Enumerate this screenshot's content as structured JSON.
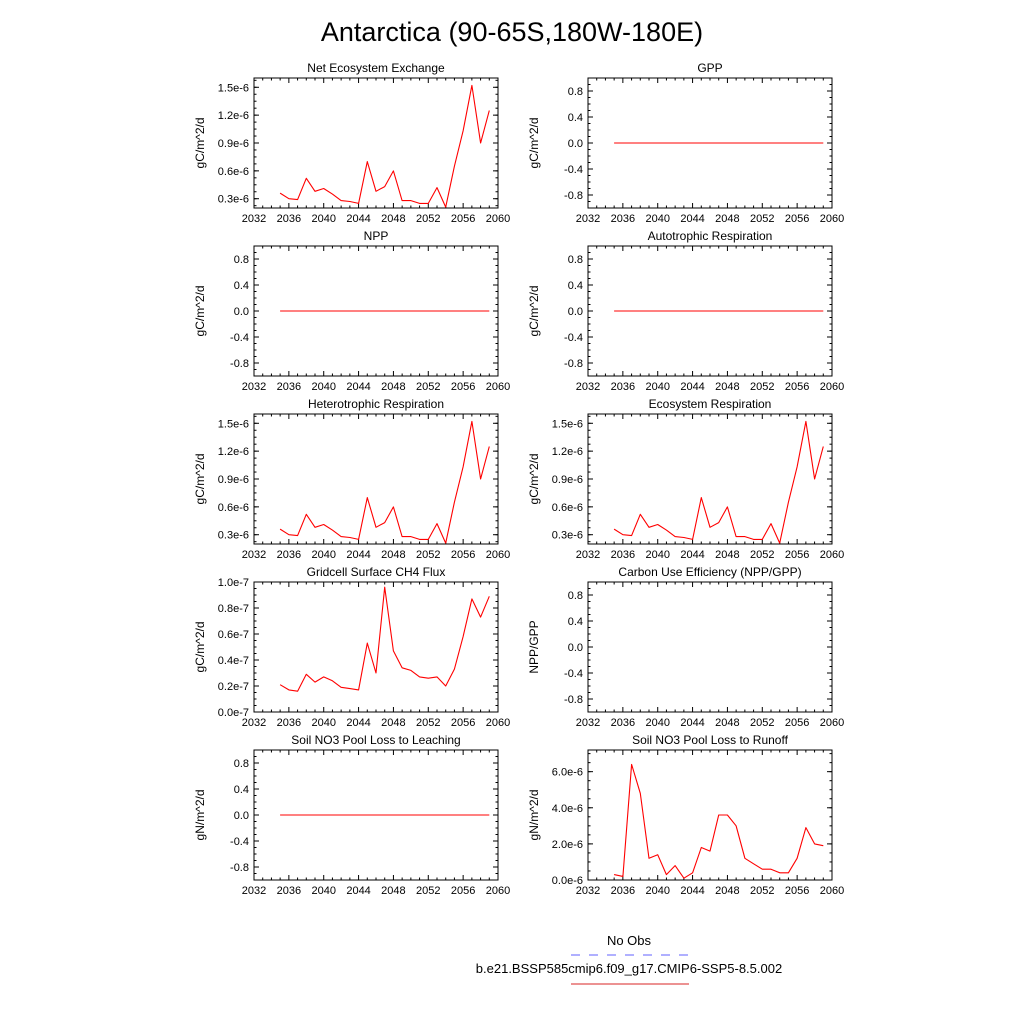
{
  "page": {
    "title": "Antarctica (90-65S,180W-180E)"
  },
  "legend": {
    "obs_label": "No Obs",
    "obs_color": "#8080ff",
    "model_label": "b.e21.BSSP585cmip6.f09_g17.CMIP6-SSP5-8.5.002",
    "model_color": "#e05050"
  },
  "line_color": "#ff0000",
  "chart_data": [
    {
      "type": "line",
      "title": "Net Ecosystem Exchange",
      "ylabel": "gC/m^2/d",
      "xlim": [
        2032,
        2060
      ],
      "ylim": [
        2e-07,
        1.6e-06
      ],
      "xticks": [
        "2032",
        "2036",
        "2040",
        "2044",
        "2048",
        "2052",
        "2056",
        "2060"
      ],
      "yticks": [
        {
          "v": 3e-07,
          "label": "0.3e-6"
        },
        {
          "v": 6e-07,
          "label": "0.6e-6"
        },
        {
          "v": 9e-07,
          "label": "0.9e-6"
        },
        {
          "v": 1.2e-06,
          "label": "1.2e-6"
        },
        {
          "v": 1.5e-06,
          "label": "1.5e-6"
        }
      ],
      "x": [
        2035,
        2036,
        2037,
        2038,
        2039,
        2040,
        2041,
        2042,
        2043,
        2044,
        2045,
        2046,
        2047,
        2048,
        2049,
        2050,
        2051,
        2052,
        2053,
        2054,
        2055,
        2056,
        2057,
        2058,
        2059
      ],
      "y": [
        3.6e-07,
        3e-07,
        2.9e-07,
        5.2e-07,
        3.8e-07,
        4.1e-07,
        3.5e-07,
        2.8e-07,
        2.7e-07,
        2.5e-07,
        7e-07,
        3.8e-07,
        4.3e-07,
        6e-07,
        2.8e-07,
        2.8e-07,
        2.5e-07,
        2.5e-07,
        4.2e-07,
        2.1e-07,
        6.5e-07,
        1.03e-06,
        1.52e-06,
        9e-07,
        1.25e-06
      ]
    },
    {
      "type": "line",
      "title": "GPP",
      "ylabel": "gC/m^2/d",
      "xlim": [
        2032,
        2060
      ],
      "ylim": [
        -1.0,
        1.0
      ],
      "xticks": [
        "2032",
        "2036",
        "2040",
        "2044",
        "2048",
        "2052",
        "2056",
        "2060"
      ],
      "yticks": [
        {
          "v": -0.8,
          "label": "-0.8"
        },
        {
          "v": -0.4,
          "label": "-0.4"
        },
        {
          "v": 0.0,
          "label": "0.0"
        },
        {
          "v": 0.4,
          "label": "0.4"
        },
        {
          "v": 0.8,
          "label": "0.8"
        }
      ],
      "x": [
        2035,
        2059
      ],
      "y": [
        0,
        0
      ]
    },
    {
      "type": "line",
      "title": "NPP",
      "ylabel": "gC/m^2/d",
      "xlim": [
        2032,
        2060
      ],
      "ylim": [
        -1.0,
        1.0
      ],
      "xticks": [
        "2032",
        "2036",
        "2040",
        "2044",
        "2048",
        "2052",
        "2056",
        "2060"
      ],
      "yticks": [
        {
          "v": -0.8,
          "label": "-0.8"
        },
        {
          "v": -0.4,
          "label": "-0.4"
        },
        {
          "v": 0.0,
          "label": "0.0"
        },
        {
          "v": 0.4,
          "label": "0.4"
        },
        {
          "v": 0.8,
          "label": "0.8"
        }
      ],
      "x": [
        2035,
        2059
      ],
      "y": [
        0,
        0
      ]
    },
    {
      "type": "line",
      "title": "Autotrophic Respiration",
      "ylabel": "gC/m^2/d",
      "xlim": [
        2032,
        2060
      ],
      "ylim": [
        -1.0,
        1.0
      ],
      "xticks": [
        "2032",
        "2036",
        "2040",
        "2044",
        "2048",
        "2052",
        "2056",
        "2060"
      ],
      "yticks": [
        {
          "v": -0.8,
          "label": "-0.8"
        },
        {
          "v": -0.4,
          "label": "-0.4"
        },
        {
          "v": 0.0,
          "label": "0.0"
        },
        {
          "v": 0.4,
          "label": "0.4"
        },
        {
          "v": 0.8,
          "label": "0.8"
        }
      ],
      "x": [
        2035,
        2059
      ],
      "y": [
        0,
        0
      ]
    },
    {
      "type": "line",
      "title": "Heterotrophic Respiration",
      "ylabel": "gC/m^2/d",
      "xlim": [
        2032,
        2060
      ],
      "ylim": [
        2e-07,
        1.6e-06
      ],
      "xticks": [
        "2032",
        "2036",
        "2040",
        "2044",
        "2048",
        "2052",
        "2056",
        "2060"
      ],
      "yticks": [
        {
          "v": 3e-07,
          "label": "0.3e-6"
        },
        {
          "v": 6e-07,
          "label": "0.6e-6"
        },
        {
          "v": 9e-07,
          "label": "0.9e-6"
        },
        {
          "v": 1.2e-06,
          "label": "1.2e-6"
        },
        {
          "v": 1.5e-06,
          "label": "1.5e-6"
        }
      ],
      "x": [
        2035,
        2036,
        2037,
        2038,
        2039,
        2040,
        2041,
        2042,
        2043,
        2044,
        2045,
        2046,
        2047,
        2048,
        2049,
        2050,
        2051,
        2052,
        2053,
        2054,
        2055,
        2056,
        2057,
        2058,
        2059
      ],
      "y": [
        3.6e-07,
        3e-07,
        2.9e-07,
        5.2e-07,
        3.8e-07,
        4.1e-07,
        3.5e-07,
        2.8e-07,
        2.7e-07,
        2.5e-07,
        7e-07,
        3.8e-07,
        4.3e-07,
        6e-07,
        2.8e-07,
        2.8e-07,
        2.5e-07,
        2.5e-07,
        4.2e-07,
        2.1e-07,
        6.5e-07,
        1.03e-06,
        1.52e-06,
        9e-07,
        1.25e-06
      ]
    },
    {
      "type": "line",
      "title": "Ecosystem Respiration",
      "ylabel": "gC/m^2/d",
      "xlim": [
        2032,
        2060
      ],
      "ylim": [
        2e-07,
        1.6e-06
      ],
      "xticks": [
        "2032",
        "2036",
        "2040",
        "2044",
        "2048",
        "2052",
        "2056",
        "2060"
      ],
      "yticks": [
        {
          "v": 3e-07,
          "label": "0.3e-6"
        },
        {
          "v": 6e-07,
          "label": "0.6e-6"
        },
        {
          "v": 9e-07,
          "label": "0.9e-6"
        },
        {
          "v": 1.2e-06,
          "label": "1.2e-6"
        },
        {
          "v": 1.5e-06,
          "label": "1.5e-6"
        }
      ],
      "x": [
        2035,
        2036,
        2037,
        2038,
        2039,
        2040,
        2041,
        2042,
        2043,
        2044,
        2045,
        2046,
        2047,
        2048,
        2049,
        2050,
        2051,
        2052,
        2053,
        2054,
        2055,
        2056,
        2057,
        2058,
        2059
      ],
      "y": [
        3.6e-07,
        3e-07,
        2.9e-07,
        5.2e-07,
        3.8e-07,
        4.1e-07,
        3.5e-07,
        2.8e-07,
        2.7e-07,
        2.5e-07,
        7e-07,
        3.8e-07,
        4.3e-07,
        6e-07,
        2.8e-07,
        2.8e-07,
        2.5e-07,
        2.5e-07,
        4.2e-07,
        2.1e-07,
        6.5e-07,
        1.03e-06,
        1.52e-06,
        9e-07,
        1.25e-06
      ]
    },
    {
      "type": "line",
      "title": "Gridcell Surface CH4 Flux",
      "ylabel": "gC/m^2/d",
      "xlim": [
        2032,
        2060
      ],
      "ylim": [
        0.0,
        1e-07
      ],
      "xticks": [
        "2032",
        "2036",
        "2040",
        "2044",
        "2048",
        "2052",
        "2056",
        "2060"
      ],
      "yticks": [
        {
          "v": 0.0,
          "label": "0.0e-7"
        },
        {
          "v": 2e-08,
          "label": "0.2e-7"
        },
        {
          "v": 4e-08,
          "label": "0.4e-7"
        },
        {
          "v": 6e-08,
          "label": "0.6e-7"
        },
        {
          "v": 8e-08,
          "label": "0.8e-7"
        },
        {
          "v": 1e-07,
          "label": "1.0e-7"
        }
      ],
      "x": [
        2035,
        2036,
        2037,
        2038,
        2039,
        2040,
        2041,
        2042,
        2043,
        2044,
        2045,
        2046,
        2047,
        2048,
        2049,
        2050,
        2051,
        2052,
        2053,
        2054,
        2055,
        2056,
        2057,
        2058,
        2059
      ],
      "y": [
        2.1e-08,
        1.7e-08,
        1.6e-08,
        2.9e-08,
        2.3e-08,
        2.7e-08,
        2.4e-08,
        1.9e-08,
        1.8e-08,
        1.7e-08,
        5.3e-08,
        3e-08,
        9.6e-08,
        4.7e-08,
        3.4e-08,
        3.2e-08,
        2.7e-08,
        2.6e-08,
        2.7e-08,
        2e-08,
        3.3e-08,
        5.8e-08,
        8.7e-08,
        7.3e-08,
        8.9e-08
      ]
    },
    {
      "type": "line",
      "title": "Carbon Use Efficiency (NPP/GPP)",
      "ylabel": "NPP/GPP",
      "xlim": [
        2032,
        2060
      ],
      "ylim": [
        -1.0,
        1.0
      ],
      "xticks": [
        "2032",
        "2036",
        "2040",
        "2044",
        "2048",
        "2052",
        "2056",
        "2060"
      ],
      "yticks": [
        {
          "v": -0.8,
          "label": "-0.8"
        },
        {
          "v": -0.4,
          "label": "-0.4"
        },
        {
          "v": 0.0,
          "label": "0.0"
        },
        {
          "v": 0.4,
          "label": "0.4"
        },
        {
          "v": 0.8,
          "label": "0.8"
        }
      ],
      "x": [],
      "y": []
    },
    {
      "type": "line",
      "title": "Soil NO3 Pool Loss to Leaching",
      "ylabel": "gN/m^2/d",
      "xlim": [
        2032,
        2060
      ],
      "ylim": [
        -1.0,
        1.0
      ],
      "xticks": [
        "2032",
        "2036",
        "2040",
        "2044",
        "2048",
        "2052",
        "2056",
        "2060"
      ],
      "yticks": [
        {
          "v": -0.8,
          "label": "-0.8"
        },
        {
          "v": -0.4,
          "label": "-0.4"
        },
        {
          "v": 0.0,
          "label": "0.0"
        },
        {
          "v": 0.4,
          "label": "0.4"
        },
        {
          "v": 0.8,
          "label": "0.8"
        }
      ],
      "x": [
        2035,
        2059
      ],
      "y": [
        0,
        0
      ]
    },
    {
      "type": "line",
      "title": "Soil NO3 Pool Loss to Runoff",
      "ylabel": "gN/m^2/d",
      "xlim": [
        2032,
        2060
      ],
      "ylim": [
        0.0,
        7.2e-06
      ],
      "xticks": [
        "2032",
        "2036",
        "2040",
        "2044",
        "2048",
        "2052",
        "2056",
        "2060"
      ],
      "yticks": [
        {
          "v": 0.0,
          "label": "0.0e-6"
        },
        {
          "v": 2e-06,
          "label": "2.0e-6"
        },
        {
          "v": 4e-06,
          "label": "4.0e-6"
        },
        {
          "v": 6e-06,
          "label": "6.0e-6"
        }
      ],
      "x": [
        2035,
        2036,
        2037,
        2038,
        2039,
        2040,
        2041,
        2042,
        2043,
        2044,
        2045,
        2046,
        2047,
        2048,
        2049,
        2050,
        2051,
        2052,
        2053,
        2054,
        2055,
        2056,
        2057,
        2058,
        2059
      ],
      "y": [
        3e-07,
        2e-07,
        6.4e-06,
        4.8e-06,
        1.2e-06,
        1.4e-06,
        3e-07,
        8e-07,
        1e-07,
        4e-07,
        1.8e-06,
        1.6e-06,
        3.6e-06,
        3.6e-06,
        3e-06,
        1.2e-06,
        9e-07,
        6e-07,
        6e-07,
        4e-07,
        4e-07,
        1.2e-06,
        2.9e-06,
        2e-06,
        1.9e-06
      ]
    }
  ]
}
